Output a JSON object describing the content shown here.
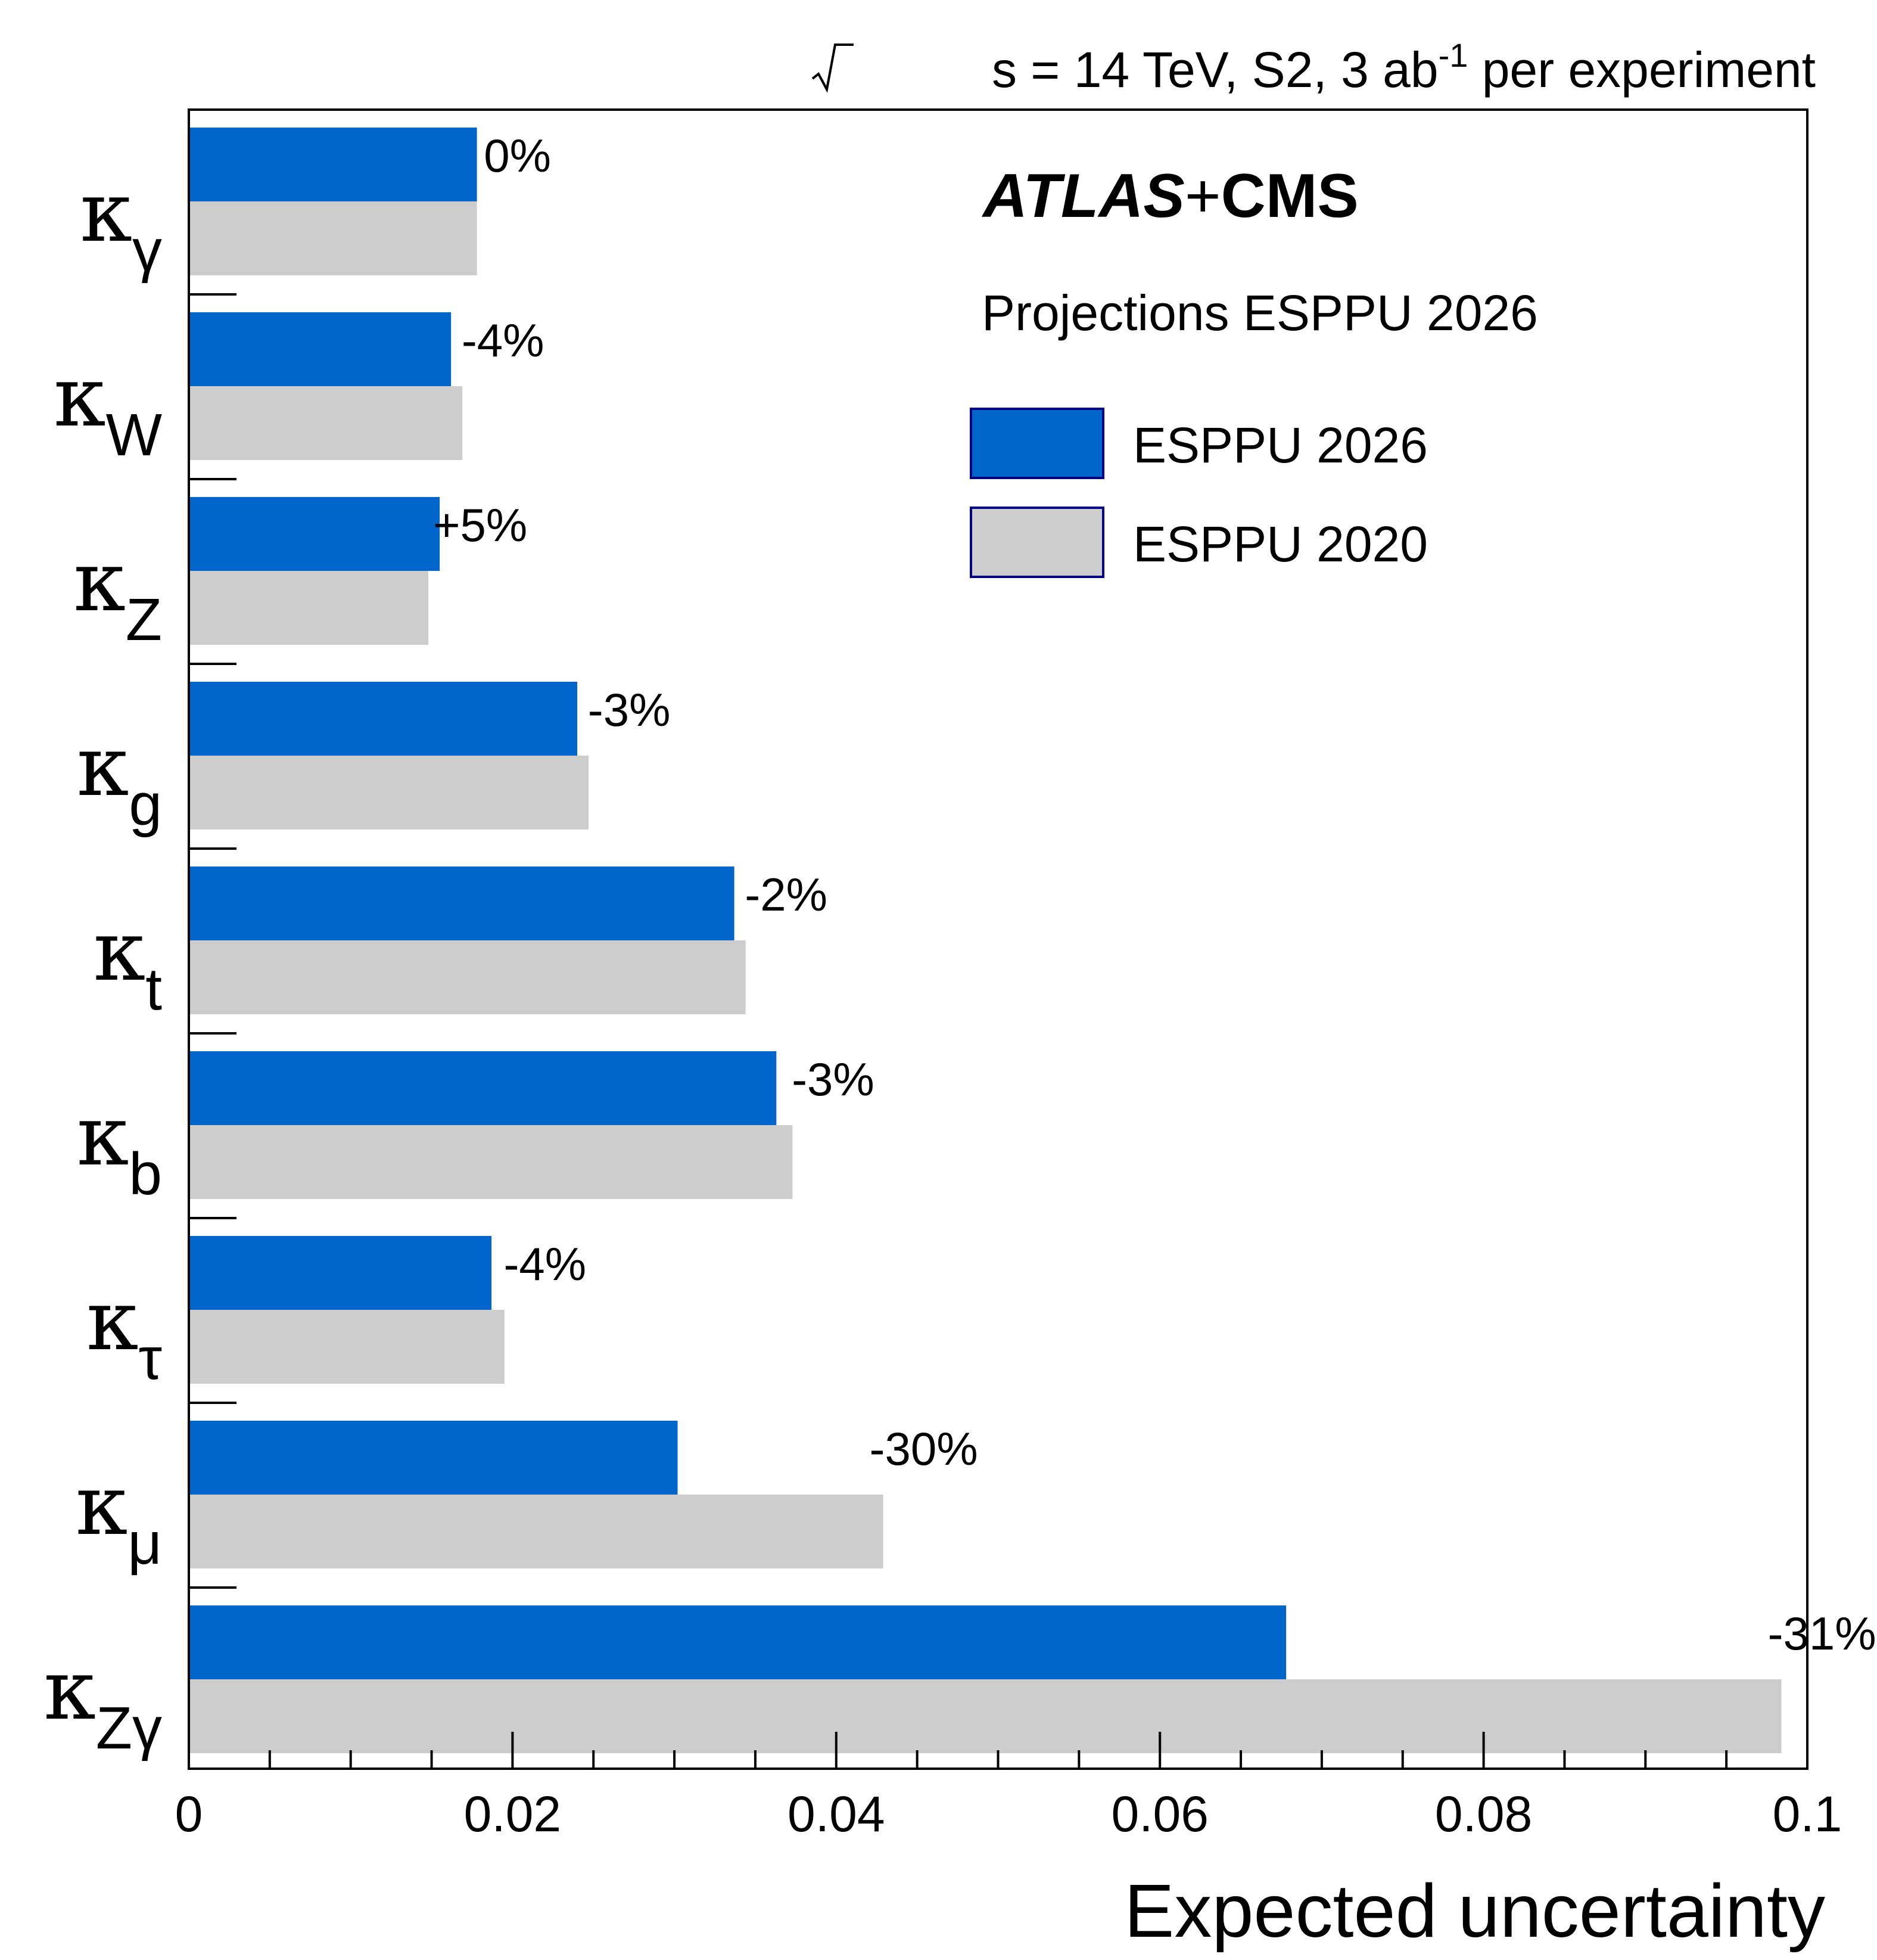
{
  "chart_data": {
    "type": "bar",
    "orientation": "horizontal",
    "header": {
      "sqrt": "s",
      "pre": " = 14 TeV, S2, 3 ab",
      "sup": "-1",
      "post": " per experiment"
    },
    "experiment": {
      "atlas": "ATLAS",
      "plus": "+",
      "cms": "CMS"
    },
    "subtitle": "Projections ESPPU 2026",
    "xlabel": "Expected uncertainty",
    "xlim": [
      0,
      0.1
    ],
    "x_ticks": [
      "0",
      "0.02",
      "0.04",
      "0.06",
      "0.08",
      "0.1"
    ],
    "x_tick_values": [
      0,
      0.02,
      0.04,
      0.06,
      0.08,
      0.1
    ],
    "legend_position": "top-right",
    "categories": [
      {
        "symbol": "κ",
        "sub": "γ"
      },
      {
        "symbol": "κ",
        "sub": "W"
      },
      {
        "symbol": "κ",
        "sub": "Z"
      },
      {
        "symbol": "κ",
        "sub": "g"
      },
      {
        "symbol": "κ",
        "sub": "t"
      },
      {
        "symbol": "κ",
        "sub": "b"
      },
      {
        "symbol": "κ",
        "sub": "τ"
      },
      {
        "symbol": "κ",
        "sub": "μ"
      },
      {
        "symbol": "κ",
        "sub": "Zγ"
      }
    ],
    "series": [
      {
        "name": "ESPPU 2026",
        "color": "#0066cc",
        "values": [
          0.0178,
          0.0162,
          0.0155,
          0.024,
          0.0337,
          0.0363,
          0.0187,
          0.0302,
          0.0678
        ]
      },
      {
        "name": "ESPPU 2020",
        "color": "#cccccc",
        "values": [
          0.0178,
          0.0169,
          0.0148,
          0.0247,
          0.0344,
          0.0373,
          0.0195,
          0.0429,
          0.0984
        ]
      }
    ],
    "change_labels": [
      "0%",
      "-4%",
      "+5%",
      "-3%",
      "-2%",
      "-3%",
      "-4%",
      "-30%",
      "-31%"
    ]
  }
}
